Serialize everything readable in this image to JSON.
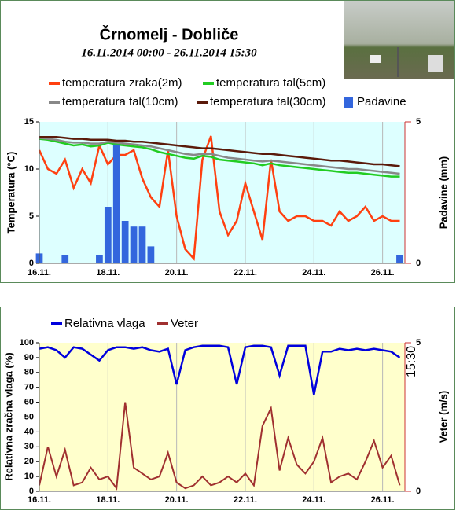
{
  "chart_data": [
    {
      "type": "line",
      "title": "Črnomelj - Dobliče",
      "subtitle": "16.11.2014 00:00 - 26.11.2014 15:30",
      "ylabel": "Temperatura (°C)",
      "y2label": "Padavine (mm)",
      "x": [
        16,
        16.25,
        16.5,
        16.75,
        17,
        17.25,
        17.5,
        17.75,
        18,
        18.25,
        18.5,
        18.75,
        19,
        19.25,
        19.5,
        19.75,
        20,
        20.25,
        20.5,
        20.75,
        21,
        21.25,
        21.5,
        21.75,
        22,
        22.25,
        22.5,
        22.75,
        23,
        23.25,
        23.5,
        23.75,
        24,
        24.25,
        24.5,
        24.75,
        25,
        25.25,
        25.5,
        25.75,
        26,
        26.25,
        26.5
      ],
      "xlim": [
        16,
        26.65
      ],
      "xticks": [
        {
          "value": 16,
          "label": "16.11."
        },
        {
          "value": 18,
          "label": "18.11."
        },
        {
          "value": 20,
          "label": "20.11."
        },
        {
          "value": 22,
          "label": "22.11."
        },
        {
          "value": 24,
          "label": "24.11."
        },
        {
          "value": 26,
          "label": "26.11."
        }
      ],
      "ylim": [
        0,
        15
      ],
      "yticks": [
        0,
        5,
        10,
        15
      ],
      "y2lim": [
        0,
        5
      ],
      "y2ticks": [
        0,
        5
      ],
      "background": "#ddffff",
      "series": [
        {
          "name": "temperatura zraka(2m)",
          "color": "#ff4010",
          "values": [
            12,
            10,
            9.5,
            11,
            8,
            10,
            8.5,
            12.5,
            10.5,
            11.5,
            11.5,
            12,
            9,
            7,
            6,
            12,
            5,
            1.5,
            0.5,
            11,
            13.5,
            5.5,
            3,
            4.5,
            8.5,
            5.5,
            2.5,
            11,
            5.5,
            4.5,
            5,
            5,
            4.5,
            4.5,
            4,
            5.5,
            4.5,
            5,
            6,
            4.5,
            5,
            4.5,
            4.5
          ]
        },
        {
          "name": "temperatura tal(5cm)",
          "color": "#22cc22",
          "values": [
            13.2,
            13.1,
            12.9,
            12.7,
            12.5,
            12.6,
            12.4,
            12.5,
            12.8,
            12.6,
            12.5,
            12.4,
            12.3,
            12.1,
            11.8,
            11.6,
            11.4,
            11.2,
            11.1,
            11.4,
            11.3,
            11,
            10.9,
            10.8,
            10.7,
            10.6,
            10.4,
            10.6,
            10.4,
            10.3,
            10.2,
            10.1,
            10,
            9.9,
            9.8,
            9.7,
            9.6,
            9.6,
            9.5,
            9.4,
            9.3,
            9.2,
            9.2
          ]
        },
        {
          "name": "temperatura tal(10cm)",
          "color": "#888888",
          "values": [
            13.3,
            13.2,
            13.1,
            12.9,
            12.8,
            12.8,
            12.7,
            12.7,
            12.9,
            12.8,
            12.7,
            12.6,
            12.5,
            12.4,
            12.2,
            12,
            11.8,
            11.6,
            11.5,
            11.6,
            11.6,
            11.4,
            11.2,
            11.1,
            11,
            10.9,
            10.8,
            10.9,
            10.8,
            10.7,
            10.6,
            10.5,
            10.4,
            10.3,
            10.2,
            10.1,
            10,
            10,
            9.9,
            9.8,
            9.7,
            9.6,
            9.5
          ]
        },
        {
          "name": "temperatura tal(30cm)",
          "color": "#5a1a0a",
          "values": [
            13.4,
            13.4,
            13.4,
            13.3,
            13.2,
            13.2,
            13.1,
            13.1,
            13.1,
            13,
            13,
            12.9,
            12.9,
            12.8,
            12.7,
            12.6,
            12.5,
            12.4,
            12.3,
            12.2,
            12.2,
            12.1,
            12,
            11.9,
            11.8,
            11.7,
            11.6,
            11.6,
            11.5,
            11.4,
            11.3,
            11.2,
            11.1,
            11,
            10.9,
            10.9,
            10.8,
            10.7,
            10.6,
            10.5,
            10.5,
            10.4,
            10.3
          ]
        },
        {
          "name": "Padavine",
          "color": "#3366dd",
          "type": "bar",
          "axis": "y2",
          "values": [
            0.35,
            0,
            0,
            0.3,
            0,
            0,
            0,
            0.3,
            2,
            4.2,
            1.5,
            1.3,
            1.3,
            0.6,
            0,
            0,
            0,
            0,
            0,
            0,
            0,
            0,
            0,
            0,
            0,
            0,
            0,
            0,
            0,
            0,
            0,
            0,
            0,
            0,
            0,
            0,
            0,
            0,
            0,
            0,
            0,
            0,
            0.3
          ]
        }
      ]
    },
    {
      "type": "line",
      "ylabel": "Relativna zračna vlaga (%)",
      "y2label": "Veter (m/s)",
      "annotation": "15:30",
      "x": [
        16,
        16.25,
        16.5,
        16.75,
        17,
        17.25,
        17.5,
        17.75,
        18,
        18.25,
        18.5,
        18.75,
        19,
        19.25,
        19.5,
        19.75,
        20,
        20.25,
        20.5,
        20.75,
        21,
        21.25,
        21.5,
        21.75,
        22,
        22.25,
        22.5,
        22.75,
        23,
        23.25,
        23.5,
        23.75,
        24,
        24.25,
        24.5,
        24.75,
        25,
        25.25,
        25.5,
        25.75,
        26,
        26.25,
        26.5
      ],
      "xlim": [
        16,
        26.65
      ],
      "xticks": [
        {
          "value": 16,
          "label": "16.11."
        },
        {
          "value": 18,
          "label": "18.11."
        },
        {
          "value": 20,
          "label": "20.11."
        },
        {
          "value": 22,
          "label": "22.11."
        },
        {
          "value": 24,
          "label": "24.11."
        },
        {
          "value": 26,
          "label": "26.11."
        }
      ],
      "ylim": [
        0,
        100
      ],
      "yticks": [
        0,
        10,
        20,
        30,
        40,
        50,
        60,
        70,
        80,
        90,
        100
      ],
      "y2lim": [
        0,
        5
      ],
      "y2ticks": [
        0,
        5
      ],
      "background": "#ffffcc",
      "series": [
        {
          "name": "Relativna vlaga",
          "color": "#0000dd",
          "values": [
            96,
            97,
            95,
            90,
            97,
            96,
            92,
            88,
            95,
            97,
            97,
            96,
            97,
            95,
            94,
            96,
            72,
            95,
            97,
            98,
            98,
            98,
            97,
            72,
            97,
            98,
            98,
            97,
            78,
            98,
            98,
            98,
            65,
            94,
            94,
            96,
            95,
            96,
            95,
            96,
            95,
            94,
            90
          ]
        },
        {
          "name": "Veter",
          "color": "#a03030",
          "axis": "y2",
          "values": [
            0.2,
            1.5,
            0.5,
            1.4,
            0.2,
            0.3,
            0.8,
            0.4,
            0.5,
            0.1,
            3,
            0.8,
            0.6,
            0.4,
            0.5,
            1.3,
            0.3,
            0.1,
            0.2,
            0.5,
            0.2,
            0.3,
            0.5,
            0.3,
            0.6,
            0.2,
            2.2,
            2.8,
            0.7,
            1.8,
            0.9,
            0.6,
            1,
            1.8,
            0.3,
            0.5,
            0.6,
            0.4,
            1,
            1.7,
            0.8,
            1.2,
            0.2
          ]
        }
      ]
    }
  ]
}
